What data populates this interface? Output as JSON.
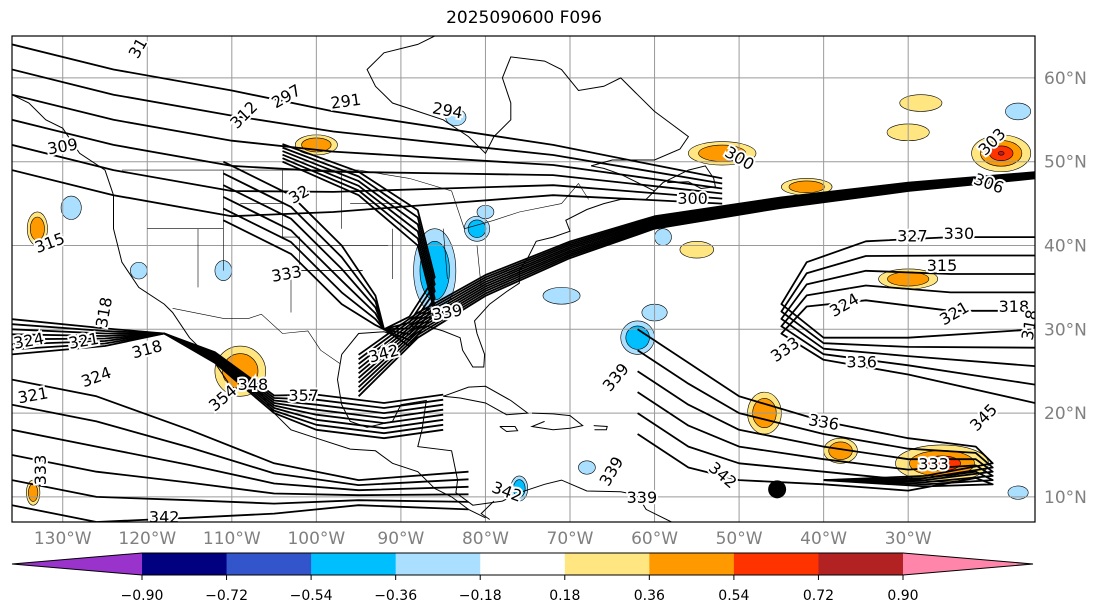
{
  "title": "2025090600 F096",
  "map": {
    "projection": "plate-carree",
    "lon_range": [
      -136,
      -15
    ],
    "lat_range": [
      7,
      65
    ],
    "coastlines": true,
    "borders": true,
    "grid": true
  },
  "lat_ticks": [
    {
      "value": 60,
      "label": "60°N"
    },
    {
      "value": 50,
      "label": "50°N"
    },
    {
      "value": 40,
      "label": "40°N"
    },
    {
      "value": 30,
      "label": "30°N"
    },
    {
      "value": 20,
      "label": "20°N"
    },
    {
      "value": 10,
      "label": "10°N"
    }
  ],
  "lon_ticks": [
    {
      "value": -130,
      "label": "130°W"
    },
    {
      "value": -120,
      "label": "120°W"
    },
    {
      "value": -110,
      "label": "110°W"
    },
    {
      "value": -100,
      "label": "100°W"
    },
    {
      "value": -90,
      "label": "90°W"
    },
    {
      "value": -80,
      "label": "80°W"
    },
    {
      "value": -70,
      "label": "70°W"
    },
    {
      "value": -60,
      "label": "60°W"
    },
    {
      "value": -50,
      "label": "50°W"
    },
    {
      "value": -40,
      "label": "40°W"
    },
    {
      "value": -30,
      "label": "30°W"
    }
  ],
  "contour_labels": [
    {
      "text": "291",
      "lon": -96.5,
      "lat": 57.1,
      "rot": 8
    },
    {
      "text": "297",
      "lon": -103.5,
      "lat": 57.7,
      "rot": 30
    },
    {
      "text": "294",
      "lon": -84.5,
      "lat": 56.0,
      "rot": -10
    },
    {
      "text": "312",
      "lon": -108.5,
      "lat": 55.5,
      "rot": 45
    },
    {
      "text": "31",
      "lon": -121,
      "lat": 63.5,
      "rot": 60
    },
    {
      "text": "309",
      "lon": -130,
      "lat": 51.7,
      "rot": 10
    },
    {
      "text": "315",
      "lon": -131.5,
      "lat": 40.2,
      "rot": 20
    },
    {
      "text": "300",
      "lon": -50,
      "lat": 50.3,
      "rot": -30
    },
    {
      "text": "303",
      "lon": -20,
      "lat": 52.3,
      "rot": 45
    },
    {
      "text": "300",
      "lon": -55.5,
      "lat": 45.5,
      "rot": 0
    },
    {
      "text": "306",
      "lon": -20.5,
      "lat": 47.3,
      "rot": -20
    },
    {
      "text": "327",
      "lon": -29.5,
      "lat": 41.0,
      "rot": 0
    },
    {
      "text": "330",
      "lon": -24,
      "lat": 41.3,
      "rot": 0
    },
    {
      "text": "315",
      "lon": -26,
      "lat": 37.5,
      "rot": 0
    },
    {
      "text": "318",
      "lon": -17.5,
      "lat": 32.6,
      "rot": 0
    },
    {
      "text": "318",
      "lon": -15.5,
      "lat": 30.5,
      "rot": 80
    },
    {
      "text": "321",
      "lon": -24.5,
      "lat": 31.8,
      "rot": 30
    },
    {
      "text": "324",
      "lon": -37.5,
      "lat": 32.8,
      "rot": 30
    },
    {
      "text": "333",
      "lon": -44.5,
      "lat": 27.5,
      "rot": 35
    },
    {
      "text": "336",
      "lon": -35.5,
      "lat": 26.0,
      "rot": 0
    },
    {
      "text": "339",
      "lon": -64.5,
      "lat": 24.2,
      "rot": 50
    },
    {
      "text": "336",
      "lon": -40,
      "lat": 18.8,
      "rot": -10
    },
    {
      "text": "345",
      "lon": -21,
      "lat": 19.4,
      "rot": 45
    },
    {
      "text": "333",
      "lon": -27,
      "lat": 13.8,
      "rot": 0
    },
    {
      "text": "342",
      "lon": -52,
      "lat": 12.5,
      "rot": -40
    },
    {
      "text": "339",
      "lon": -65,
      "lat": 13.0,
      "rot": 60
    },
    {
      "text": "339",
      "lon": -61.5,
      "lat": 9.8,
      "rot": 0
    },
    {
      "text": "342",
      "lon": -77.5,
      "lat": 10.5,
      "rot": -20
    },
    {
      "text": "342",
      "lon": -92,
      "lat": 27.0,
      "rot": 15
    },
    {
      "text": "339",
      "lon": -84.5,
      "lat": 31.9,
      "rot": 10
    },
    {
      "text": "348",
      "lon": -107.5,
      "lat": 23.3,
      "rot": 0
    },
    {
      "text": "357",
      "lon": -101.5,
      "lat": 22.0,
      "rot": 0
    },
    {
      "text": "354",
      "lon": -111,
      "lat": 21.7,
      "rot": 40
    },
    {
      "text": "333",
      "lon": -103.5,
      "lat": 36.5,
      "rot": 10
    },
    {
      "text": "32",
      "lon": -102,
      "lat": 46.0,
      "rot": 30
    },
    {
      "text": "318",
      "lon": -125,
      "lat": 32.0,
      "rot": 80
    },
    {
      "text": "324",
      "lon": -134,
      "lat": 28.5,
      "rot": 10
    },
    {
      "text": "321",
      "lon": -127.5,
      "lat": 28.5,
      "rot": 10
    },
    {
      "text": "318",
      "lon": -120,
      "lat": 27.5,
      "rot": 15
    },
    {
      "text": "324",
      "lon": -126,
      "lat": 24.2,
      "rot": 20
    },
    {
      "text": "321",
      "lon": -133.5,
      "lat": 22.0,
      "rot": 10
    },
    {
      "text": "333",
      "lon": -132.5,
      "lat": 13.2,
      "rot": 90
    },
    {
      "text": "342",
      "lon": -118,
      "lat": 7.5,
      "rot": 0
    }
  ],
  "colorbar": {
    "extend": "both",
    "levels": [
      -0.9,
      -0.72,
      -0.54,
      -0.36,
      -0.18,
      0.18,
      0.36,
      0.54,
      0.72,
      0.9
    ],
    "labels": [
      "−0.90",
      "−0.72",
      "−0.54",
      "−0.36",
      "−0.18",
      "0.18",
      "0.36",
      "0.54",
      "0.72",
      "0.90"
    ],
    "colors": [
      "#9933cc",
      "#000080",
      "#3355cc",
      "#00bfff",
      "#aadfff",
      "#ffffff",
      "#ffe680",
      "#ff9900",
      "#ff3300",
      "#b22222",
      "#ff85aa"
    ]
  },
  "marker": {
    "lon": -45.5,
    "lat": 10.9,
    "color": "#000000"
  }
}
